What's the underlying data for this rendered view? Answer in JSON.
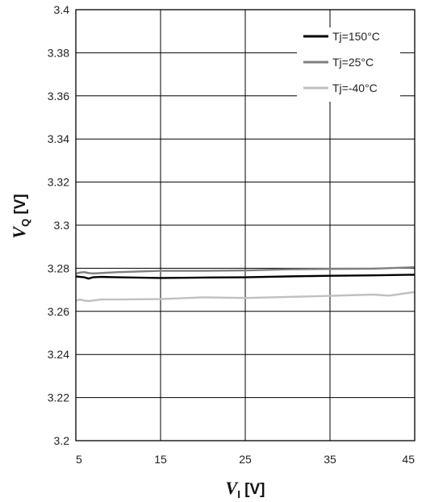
{
  "chart_data": {
    "type": "line",
    "xlabel": {
      "symbol": "V",
      "subscript": "I",
      "unit": " [V]"
    },
    "ylabel": {
      "symbol": "V",
      "subscript": "Q",
      "unit": " [V]"
    },
    "xlim": [
      5,
      45
    ],
    "ylim": [
      3.2,
      3.4
    ],
    "x_ticks": [
      "5",
      "15",
      "25",
      "35",
      "45"
    ],
    "y_ticks": [
      "3.2",
      "3.22",
      "3.24",
      "3.26",
      "3.28",
      "3.3",
      "3.32",
      "3.34",
      "3.36",
      "3.38",
      "3.4"
    ],
    "grid": true,
    "legend_position": "top-right",
    "series": [
      {
        "name": "Tj=150°C",
        "color": "#000000",
        "x": [
          5,
          5.5,
          6,
          6.5,
          7,
          8,
          10,
          15,
          20,
          25,
          30,
          35,
          40,
          45
        ],
        "y": [
          3.2762,
          3.276,
          3.2758,
          3.2752,
          3.2758,
          3.276,
          3.2758,
          3.2755,
          3.2757,
          3.2758,
          3.2762,
          3.2765,
          3.2767,
          3.277
        ]
      },
      {
        "name": "Tj=25°C",
        "color": "#7f7f7f",
        "x": [
          5,
          5.5,
          6,
          6.5,
          7,
          8,
          10,
          15,
          20,
          25,
          30,
          35,
          40,
          45
        ],
        "y": [
          3.2775,
          3.278,
          3.2782,
          3.2778,
          3.2776,
          3.2778,
          3.2782,
          3.2788,
          3.2788,
          3.279,
          3.2795,
          3.2797,
          3.2798,
          3.2805
        ]
      },
      {
        "name": "Tj=-40°C",
        "color": "#c0c0c0",
        "x": [
          5,
          5.5,
          6,
          6.5,
          7,
          8,
          10,
          15,
          20,
          25,
          30,
          35,
          40,
          42,
          45
        ],
        "y": [
          3.265,
          3.2655,
          3.265,
          3.2648,
          3.265,
          3.2655,
          3.2655,
          3.2657,
          3.2665,
          3.2662,
          3.2667,
          3.2672,
          3.2678,
          3.2673,
          3.269
        ]
      }
    ]
  }
}
